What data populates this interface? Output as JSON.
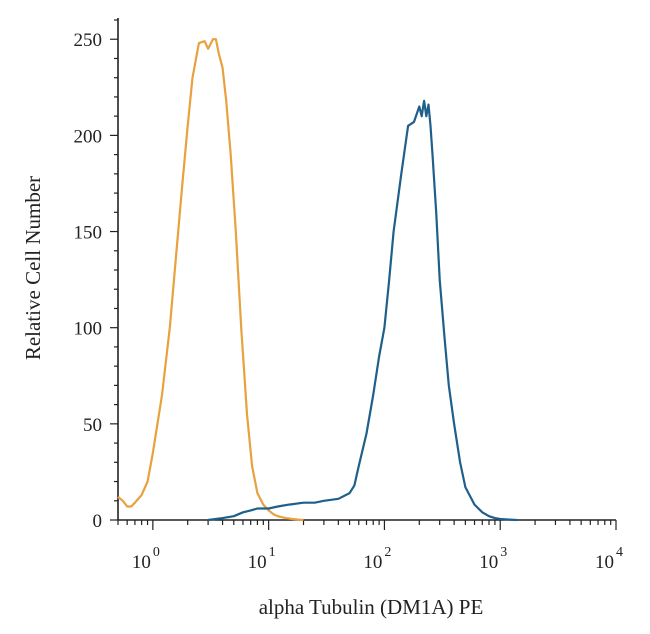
{
  "chart_data": {
    "type": "line",
    "title": "",
    "xlabel": "alpha Tubulin (DM1A) PE",
    "ylabel": "Relative Cell Number",
    "x_scale": "log",
    "xlim": [
      0.5,
      10000
    ],
    "ylim": [
      0,
      260
    ],
    "grid": false,
    "legend": "none",
    "x_ticks": [
      {
        "base": "10",
        "exp": "0",
        "value": 1
      },
      {
        "base": "10",
        "exp": "1",
        "value": 10
      },
      {
        "base": "10",
        "exp": "2",
        "value": 100
      },
      {
        "base": "10",
        "exp": "3",
        "value": 1000
      },
      {
        "base": "10",
        "exp": "4",
        "value": 10000
      }
    ],
    "y_ticks": [
      0,
      50,
      100,
      150,
      200,
      250
    ],
    "series": [
      {
        "color": "#e8a13f",
        "x": [
          0.5,
          0.55,
          0.6,
          0.65,
          0.7,
          0.8,
          0.9,
          1.0,
          1.2,
          1.4,
          1.6,
          1.8,
          2.0,
          2.2,
          2.5,
          2.8,
          3.0,
          3.3,
          3.5,
          3.7,
          4.0,
          4.3,
          4.7,
          5.2,
          5.8,
          6.5,
          7.2,
          8.0,
          9.0,
          10,
          11,
          12,
          14,
          16,
          18,
          20
        ],
        "values": [
          12,
          10,
          7,
          7,
          9,
          13,
          20,
          35,
          65,
          100,
          140,
          175,
          205,
          230,
          248,
          249,
          245,
          250,
          250,
          243,
          235,
          218,
          190,
          150,
          100,
          55,
          28,
          14,
          8,
          5,
          3,
          2,
          1,
          0.5,
          0.2,
          0
        ]
      },
      {
        "color": "#1f5f8b",
        "x": [
          3,
          4,
          5,
          6,
          7,
          8,
          10,
          12,
          15,
          20,
          25,
          30,
          40,
          50,
          55,
          60,
          70,
          80,
          90,
          100,
          110,
          120,
          140,
          160,
          180,
          200,
          210,
          220,
          230,
          240,
          250,
          260,
          280,
          300,
          330,
          360,
          400,
          450,
          500,
          600,
          700,
          800,
          900,
          1000,
          1200,
          1400
        ],
        "values": [
          0,
          1,
          2,
          4,
          5,
          6,
          6,
          7,
          8,
          9,
          9,
          10,
          11,
          14,
          18,
          28,
          45,
          65,
          85,
          100,
          125,
          150,
          180,
          205,
          207,
          215,
          210,
          218,
          210,
          216,
          205,
          190,
          160,
          125,
          95,
          70,
          50,
          30,
          17,
          8,
          4,
          2,
          1,
          0.5,
          0.2,
          0
        ]
      }
    ]
  }
}
